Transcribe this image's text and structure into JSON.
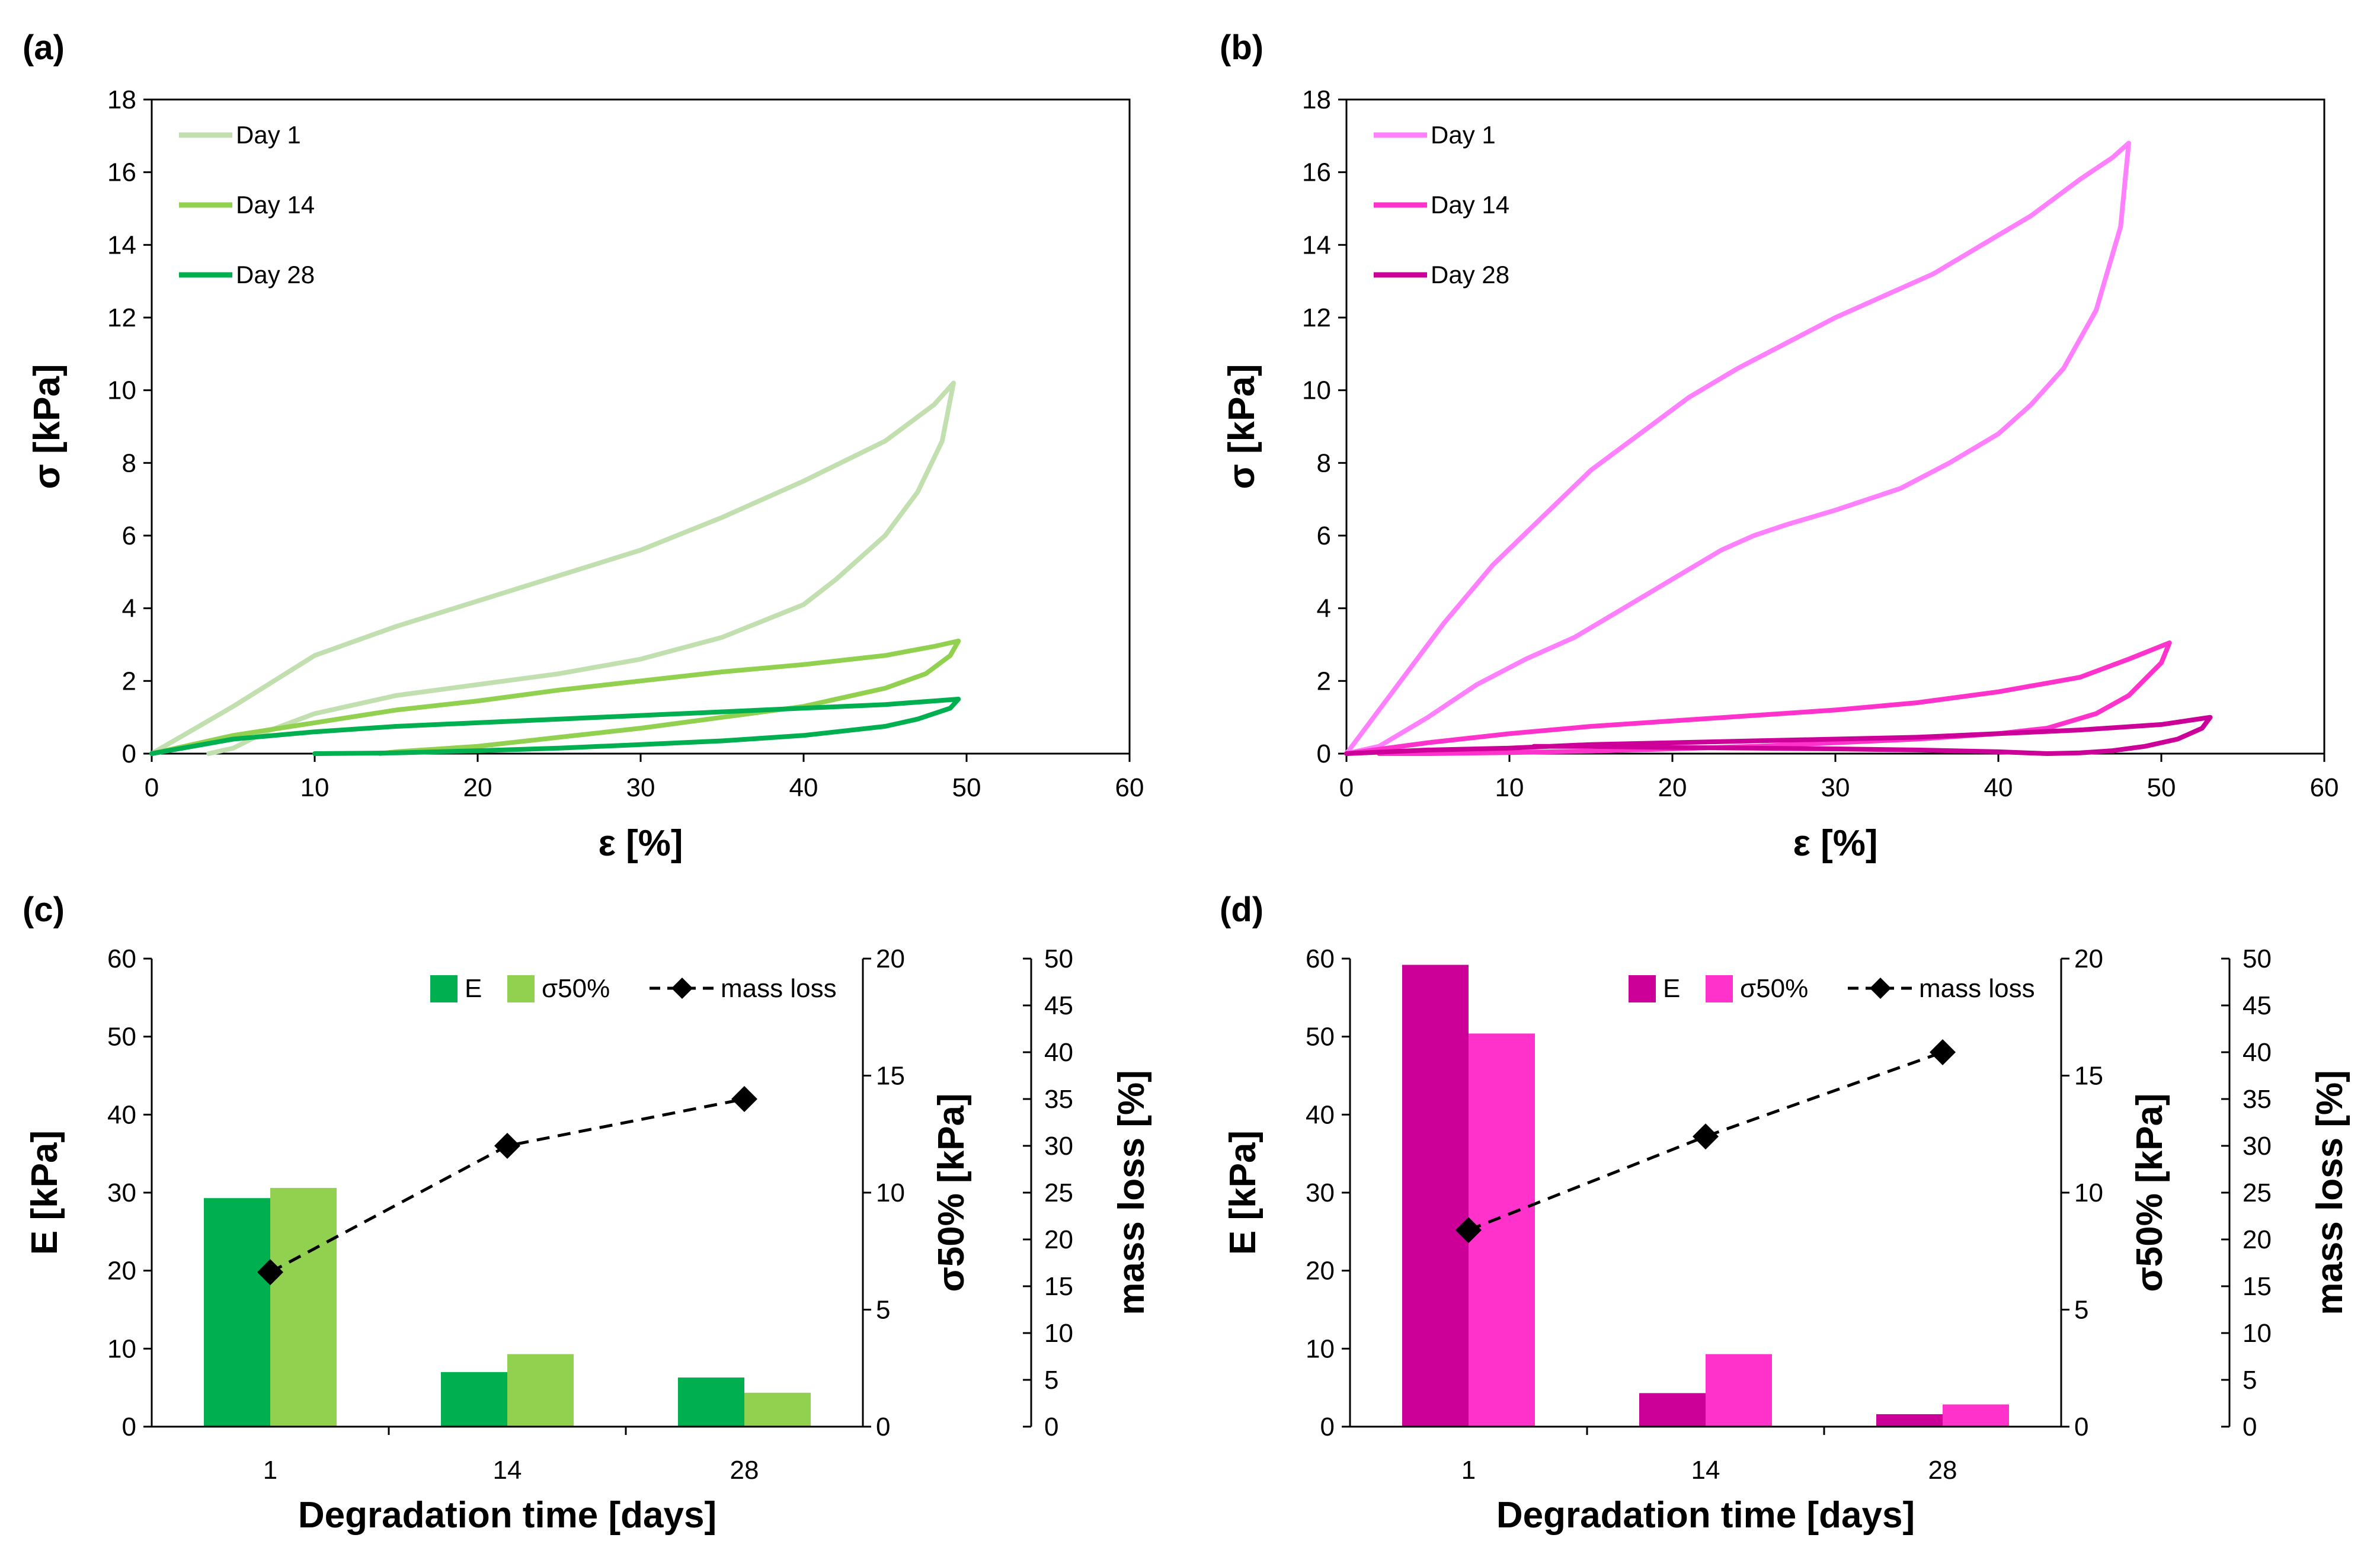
{
  "chart_data": [
    {
      "panel": "(a)",
      "type": "line",
      "xlabel": "ε [%]",
      "ylabel": "σ [kPa]",
      "xlim": [
        0,
        60
      ],
      "ylim": [
        0,
        18
      ],
      "xticks": [
        0,
        10,
        20,
        30,
        40,
        50,
        60
      ],
      "yticks": [
        0,
        2,
        4,
        6,
        8,
        10,
        12,
        14,
        16,
        18
      ],
      "legend_position": "top-left",
      "series": [
        {
          "name": "Day 1",
          "color": "#c2dfb0",
          "x": [
            0,
            5,
            10,
            15,
            20,
            25,
            30,
            35,
            40,
            45,
            48,
            49.2,
            48.5,
            47,
            45,
            42,
            40,
            35,
            30,
            25,
            20,
            15,
            10,
            7,
            5,
            3.5
          ],
          "y": [
            0,
            1.3,
            2.7,
            3.5,
            4.2,
            4.9,
            5.6,
            6.5,
            7.5,
            8.6,
            9.6,
            10.2,
            8.6,
            7.2,
            6.0,
            4.8,
            4.1,
            3.2,
            2.6,
            2.2,
            1.9,
            1.6,
            1.1,
            0.6,
            0.15,
            0
          ]
        },
        {
          "name": "Day 14",
          "color": "#92d050",
          "x": [
            0,
            5,
            10,
            15,
            20,
            25,
            30,
            35,
            40,
            45,
            48,
            49.5,
            49,
            47.5,
            45,
            40,
            35,
            30,
            25,
            20,
            15,
            14
          ],
          "y": [
            0,
            0.5,
            0.85,
            1.2,
            1.45,
            1.75,
            2.0,
            2.25,
            2.45,
            2.7,
            2.95,
            3.1,
            2.7,
            2.2,
            1.8,
            1.3,
            1.0,
            0.7,
            0.45,
            0.2,
            0.05,
            0
          ]
        },
        {
          "name": "Day 28",
          "color": "#00b050",
          "x": [
            0,
            5,
            10,
            15,
            20,
            25,
            30,
            35,
            40,
            45,
            48,
            49.5,
            49,
            47,
            45,
            40,
            35,
            30,
            25,
            20,
            15,
            10
          ],
          "y": [
            0,
            0.4,
            0.6,
            0.75,
            0.85,
            0.95,
            1.05,
            1.15,
            1.25,
            1.35,
            1.45,
            1.5,
            1.25,
            0.95,
            0.75,
            0.5,
            0.35,
            0.25,
            0.15,
            0.08,
            0.02,
            0
          ]
        }
      ]
    },
    {
      "panel": "(b)",
      "type": "line",
      "xlabel": "ε [%]",
      "ylabel": "σ [kPa]",
      "xlim": [
        0,
        60
      ],
      "ylim": [
        0,
        18
      ],
      "xticks": [
        0,
        10,
        20,
        30,
        40,
        50,
        60
      ],
      "yticks": [
        0,
        2,
        4,
        6,
        8,
        10,
        12,
        14,
        16,
        18
      ],
      "legend_position": "top-left",
      "series": [
        {
          "name": "Day 1",
          "color": "#ff80ff",
          "x": [
            0,
            3,
            6,
            9,
            12,
            15,
            18,
            21,
            24,
            27,
            30,
            33,
            36,
            39,
            42,
            45,
            47,
            48,
            47.5,
            46,
            44,
            42,
            40,
            37,
            34,
            30,
            27,
            25,
            23,
            20,
            17,
            14,
            11,
            8,
            5,
            2,
            0
          ],
          "y": [
            0,
            1.8,
            3.6,
            5.2,
            6.5,
            7.8,
            8.8,
            9.8,
            10.6,
            11.3,
            12.0,
            12.6,
            13.2,
            14.0,
            14.8,
            15.8,
            16.4,
            16.8,
            14.5,
            12.2,
            10.6,
            9.6,
            8.8,
            8.0,
            7.3,
            6.7,
            6.3,
            6.0,
            5.6,
            4.8,
            4.0,
            3.2,
            2.6,
            1.9,
            1.0,
            0.2,
            0
          ]
        },
        {
          "name": "Day 14",
          "color": "#ff33cc",
          "x": [
            0,
            5,
            10,
            15,
            20,
            25,
            30,
            35,
            40,
            45,
            48,
            50.5,
            50,
            48,
            46,
            43,
            40,
            35,
            30,
            25,
            20,
            15,
            10,
            5,
            2
          ],
          "y": [
            0,
            0.3,
            0.55,
            0.75,
            0.9,
            1.05,
            1.2,
            1.4,
            1.7,
            2.1,
            2.6,
            3.05,
            2.5,
            1.6,
            1.1,
            0.7,
            0.55,
            0.4,
            0.3,
            0.2,
            0.13,
            0.07,
            0.03,
            0,
            0
          ]
        },
        {
          "name": "Day 28",
          "color": "#cc0099",
          "x": [
            0,
            5,
            10,
            15,
            20,
            25,
            30,
            35,
            40,
            45,
            50,
            53,
            52.5,
            51,
            49,
            47,
            45,
            43,
            40,
            35,
            30,
            25,
            20,
            15,
            11.5
          ],
          "y": [
            0,
            0.1,
            0.15,
            0.25,
            0.3,
            0.35,
            0.4,
            0.45,
            0.55,
            0.65,
            0.8,
            1.0,
            0.7,
            0.4,
            0.2,
            0.08,
            0.02,
            0,
            0.05,
            0.1,
            0.13,
            0.15,
            0.17,
            0.2,
            0.2
          ]
        }
      ]
    },
    {
      "panel": "(c)",
      "type": "bar",
      "categories": [
        "1",
        "14",
        "28"
      ],
      "xlabel": "Degradation time [days]",
      "ylabel": "E [kPa]",
      "ylabel2": "σ50% [kPa]",
      "ylabel3": "mass loss [%]",
      "ylim": [
        0,
        60
      ],
      "ylim2": [
        0,
        20
      ],
      "ylim3": [
        0,
        50
      ],
      "yticks": [
        0,
        10,
        20,
        30,
        40,
        50,
        60
      ],
      "yticks2": [
        0,
        5,
        10,
        15,
        20
      ],
      "yticks3": [
        0,
        5,
        10,
        15,
        20,
        25,
        30,
        35,
        40,
        45,
        50
      ],
      "legend_position": "top-right",
      "series": [
        {
          "name": "E",
          "axis": "left",
          "color": "#00b050",
          "values": [
            29.3,
            7.0,
            6.3
          ]
        },
        {
          "name": "σ50%",
          "axis": "right",
          "color": "#92d050",
          "values": [
            10.2,
            3.1,
            1.45
          ]
        },
        {
          "name": "mass loss",
          "axis": "right2",
          "color": "#000000",
          "type": "line",
          "values": [
            16.5,
            30.0,
            35.0
          ]
        }
      ]
    },
    {
      "panel": "(d)",
      "type": "bar",
      "categories": [
        "1",
        "14",
        "28"
      ],
      "xlabel": "Degradation time [days]",
      "ylabel": "E [kPa]",
      "ylabel2": "σ50% [kPa]",
      "ylabel3": "mass loss [%]",
      "ylim": [
        0,
        60
      ],
      "ylim2": [
        0,
        20
      ],
      "ylim3": [
        0,
        50
      ],
      "yticks": [
        0,
        10,
        20,
        30,
        40,
        50,
        60
      ],
      "yticks2": [
        0,
        5,
        10,
        15,
        20
      ],
      "yticks3": [
        0,
        5,
        10,
        15,
        20,
        25,
        30,
        35,
        40,
        45,
        50
      ],
      "legend_position": "top-right",
      "series": [
        {
          "name": "E",
          "axis": "left",
          "color": "#cc0099",
          "values": [
            59.2,
            4.3,
            1.6
          ]
        },
        {
          "name": "σ50%",
          "axis": "right",
          "color": "#ff33cc",
          "values": [
            16.8,
            3.1,
            0.95
          ]
        },
        {
          "name": "mass loss",
          "axis": "right2",
          "color": "#000000",
          "type": "line",
          "values": [
            21.0,
            31.0,
            40.0
          ]
        }
      ]
    }
  ]
}
